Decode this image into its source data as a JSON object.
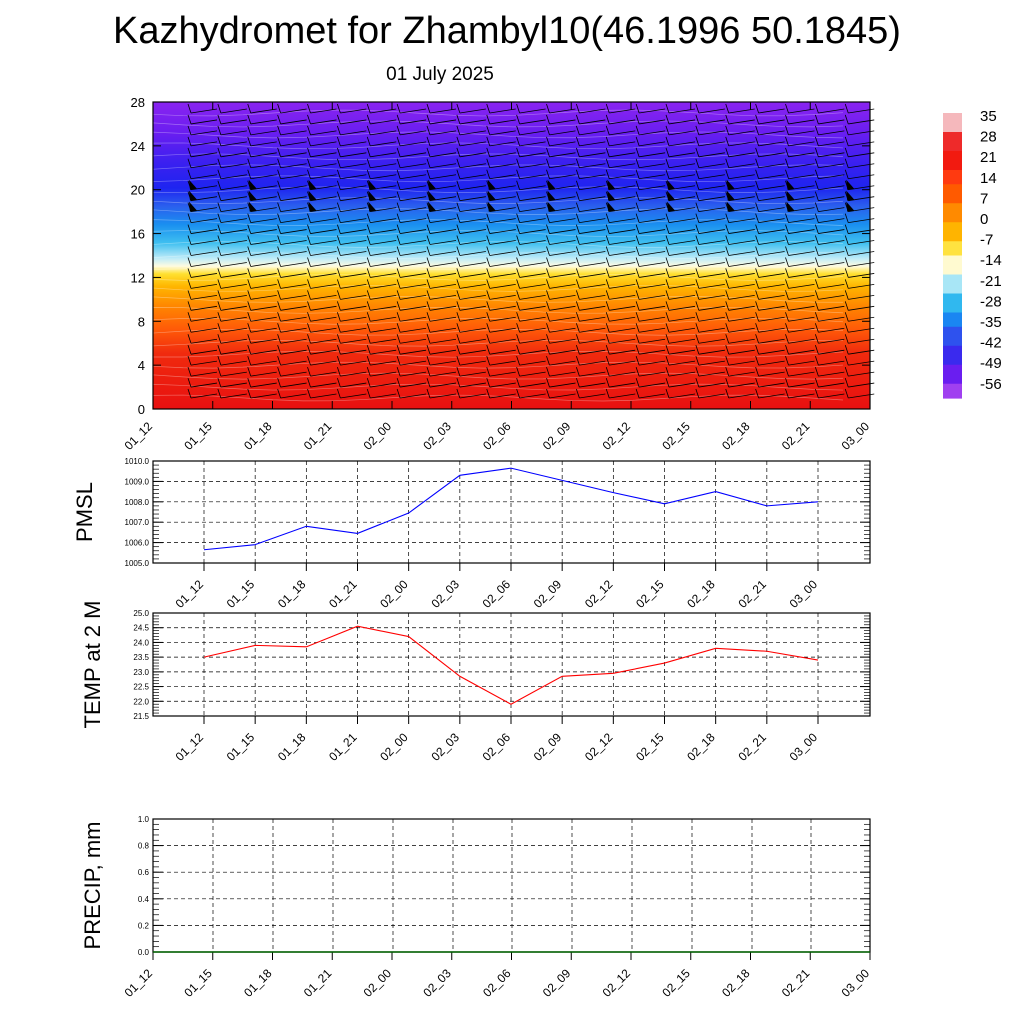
{
  "title": "Kazhydromet for Zhambyl10(46.1996 50.1845)",
  "subtitle": "01 July 2025",
  "colorbar": {
    "labels": [
      "35",
      "28",
      "21",
      "14",
      "7",
      "0",
      "-7",
      "-14",
      "-21",
      "-28",
      "-35",
      "-42",
      "-49",
      "-56"
    ],
    "colors": [
      "#f5b8bc",
      "#ee2a2a",
      "#ff3a10",
      "#ff7a00",
      "#ffb400",
      "#ffe240",
      "#fffad0",
      "#a8e6f6",
      "#30b8ef",
      "#1a86f2",
      "#2e52ee",
      "#3a2aee",
      "#6a1ef0",
      "#a040f0"
    ]
  },
  "chart_data": [
    {
      "type": "heatmap",
      "title": "",
      "ylim": [
        0,
        28
      ],
      "yticks": [
        "0",
        "4",
        "8",
        "12",
        "16",
        "20",
        "24",
        "28"
      ],
      "categories": [
        "01_12",
        "01_15",
        "01_18",
        "01_21",
        "02_00",
        "02_03",
        "02_06",
        "02_09",
        "02_12",
        "02_15",
        "02_18",
        "02_21",
        "03_00"
      ],
      "value_bands": [
        {
          "level_from": 0,
          "level_to": 6,
          "temp": 30
        },
        {
          "level_from": 6,
          "level_to": 13,
          "temp": 10
        },
        {
          "level_from": 13,
          "level_to": 17,
          "temp": -30
        },
        {
          "level_from": 17,
          "level_to": 28,
          "temp": -56
        }
      ],
      "wind_barbs": true
    },
    {
      "type": "line",
      "ylabel": "PMSL",
      "ylim": [
        1005.0,
        1010.0
      ],
      "yticks": [
        "1005.0",
        "1006.0",
        "1007.0",
        "1008.0",
        "1009.0",
        "1010.0"
      ],
      "categories": [
        "01_12",
        "01_15",
        "01_18",
        "01_21",
        "02_00",
        "02_03",
        "02_06",
        "02_09",
        "02_12",
        "02_15",
        "02_18",
        "02_21",
        "03_00"
      ],
      "series": [
        {
          "values": [
            1005.65,
            1005.9,
            1006.8,
            1006.45,
            1007.45,
            1009.3,
            1009.65,
            1009.05,
            1008.45,
            1007.9,
            1008.5,
            1007.8,
            1008.0
          ],
          "color": "#0000ff"
        }
      ]
    },
    {
      "type": "line",
      "ylabel": "TEMP at 2 M",
      "ylim": [
        21.5,
        25.0
      ],
      "yticks": [
        "21.5",
        "22.0",
        "22.5",
        "23.0",
        "23.5",
        "24.0",
        "24.5",
        "25.0"
      ],
      "categories": [
        "01_12",
        "01_15",
        "01_18",
        "01_21",
        "02_00",
        "02_03",
        "02_06",
        "02_09",
        "02_12",
        "02_15",
        "02_18",
        "02_21",
        "03_00"
      ],
      "series": [
        {
          "values": [
            23.5,
            23.9,
            23.85,
            24.55,
            24.2,
            22.85,
            21.9,
            22.85,
            22.95,
            23.3,
            23.8,
            23.7,
            23.4
          ],
          "color": "#ff0000"
        }
      ]
    },
    {
      "type": "line",
      "ylabel": "PRECIP, mm",
      "ylim": [
        0.0,
        1.0
      ],
      "yticks": [
        "0.0",
        "0.2",
        "0.4",
        "0.6",
        "0.8",
        "1.0"
      ],
      "categories": [
        "01_12",
        "01_15",
        "01_18",
        "01_21",
        "02_00",
        "02_03",
        "02_06",
        "02_09",
        "02_12",
        "02_15",
        "02_18",
        "02_21",
        "03_00"
      ],
      "series": [
        {
          "values": [
            0,
            0,
            0,
            0,
            0,
            0,
            0,
            0,
            0,
            0,
            0,
            0,
            0
          ],
          "color": "#006400"
        }
      ]
    }
  ]
}
